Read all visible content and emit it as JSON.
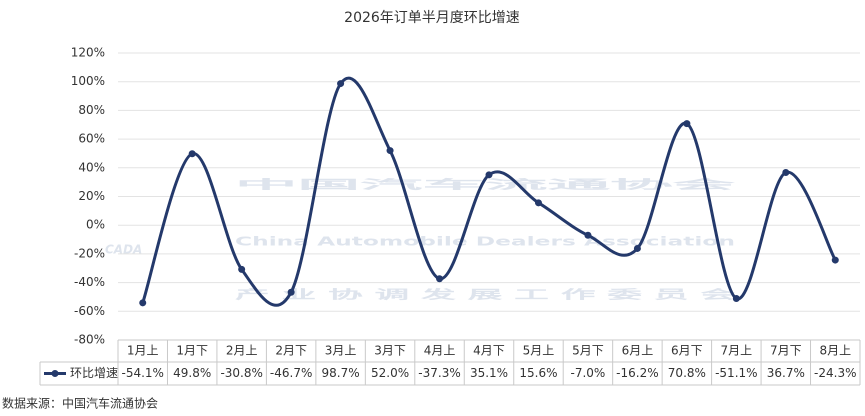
{
  "chart_data": {
    "type": "line",
    "title": "2026年订单半月度环比增速",
    "source": "数据来源：中国汽车流通协会",
    "watermark": {
      "logo": "CADA",
      "name": "中国汽车流通协会",
      "english": "China Automobile Dealers Association",
      "committee": "产 业 协 调 发 展 工 作 委 员 会"
    },
    "categories": [
      "1月上",
      "1月下",
      "2月上",
      "2月下",
      "3月上",
      "3月下",
      "4月上",
      "4月下",
      "5月上",
      "5月下",
      "6月上",
      "6月下",
      "7月上",
      "7月下",
      "8月上"
    ],
    "series": [
      {
        "name": "环比增速",
        "color": "#24396b",
        "values": [
          -54.1,
          49.8,
          -30.8,
          -46.7,
          98.7,
          52.0,
          -37.3,
          35.1,
          15.6,
          -7.0,
          -16.2,
          70.8,
          -51.1,
          36.7,
          -24.3
        ],
        "value_labels": [
          "-54.1%",
          "49.8%",
          "-30.8%",
          "-46.7%",
          "98.7%",
          "52.0%",
          "-37.3%",
          "35.1%",
          "15.6%",
          "-7.0%",
          "-16.2%",
          "70.8%",
          "-51.1%",
          "36.7%",
          "-24.3%"
        ]
      }
    ],
    "ylim": [
      -80,
      120
    ],
    "yticks": [
      {
        "value": -80,
        "label": "-80%"
      },
      {
        "value": -60,
        "label": "-60%"
      },
      {
        "value": -40,
        "label": "-40%"
      },
      {
        "value": -20,
        "label": "-20%"
      },
      {
        "value": 0,
        "label": "0%"
      },
      {
        "value": 20,
        "label": "20%"
      },
      {
        "value": 40,
        "label": "40%"
      },
      {
        "value": 60,
        "label": "60%"
      },
      {
        "value": 80,
        "label": "80%"
      },
      {
        "value": 100,
        "label": "100%"
      },
      {
        "value": 120,
        "label": "120%"
      }
    ],
    "grid": true
  }
}
